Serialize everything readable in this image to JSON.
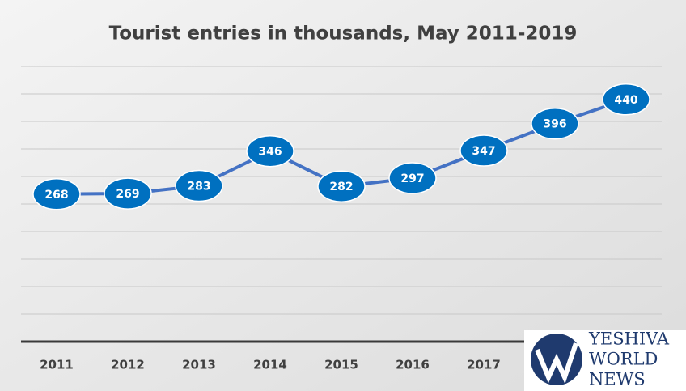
{
  "chart_data": {
    "type": "line",
    "title": "Tourist entries in thousands, May 2011-2019",
    "categories": [
      "2011",
      "2012",
      "2013",
      "2014",
      "2015",
      "2016",
      "2017",
      null,
      null
    ],
    "series": [
      {
        "color": "#4472c4",
        "values": [
          268,
          269,
          283,
          346,
          282,
          297,
          347,
          396,
          440
        ]
      }
    ],
    "ylim": [
      0,
      500
    ],
    "yticks": [
      0,
      50,
      100,
      150,
      200,
      250,
      300,
      350,
      400,
      450,
      500
    ],
    "grid": true
  },
  "watermark": [
    "YESHIVA",
    "WORLD",
    "NEWS"
  ]
}
